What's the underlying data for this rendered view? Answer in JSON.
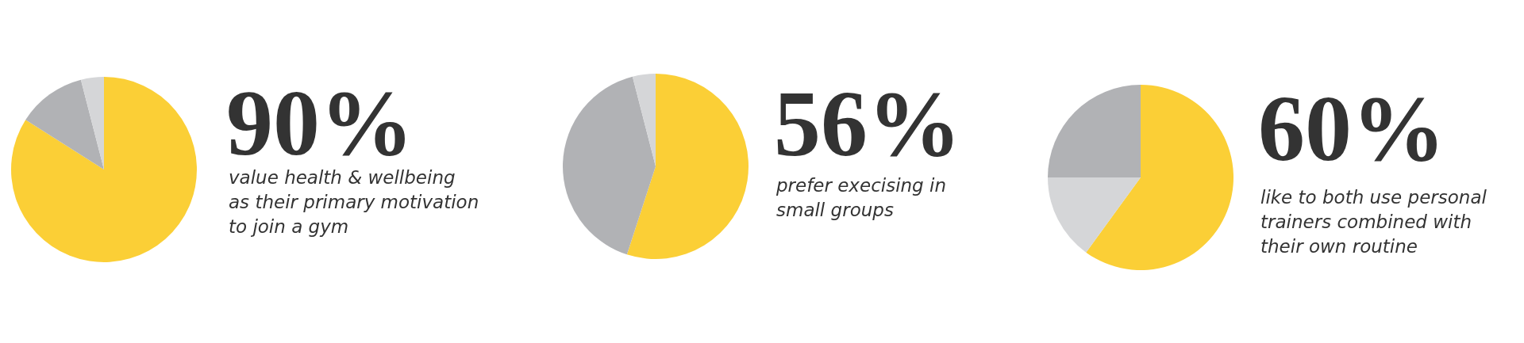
{
  "chart_data": [
    {
      "type": "pie",
      "title": "90%",
      "subtitle": "value health & wellbeing\nas their primary motivation\nto join a gym",
      "categories": [
        null,
        null,
        null
      ],
      "values": [
        84,
        12,
        4
      ],
      "colors": [
        "#fbcf36",
        "#b1b2b5",
        "#d5d6d8"
      ]
    },
    {
      "type": "pie",
      "title": "56%",
      "subtitle": "prefer execising in\nsmall groups",
      "categories": [
        null,
        null,
        null
      ],
      "values": [
        55,
        41,
        4
      ],
      "colors": [
        "#fbcf36",
        "#b1b2b5",
        "#d5d6d8"
      ]
    },
    {
      "type": "pie",
      "title": "60%",
      "subtitle": "like to both use personal\ntrainers combined with\ntheir own routine",
      "categories": [
        null,
        null,
        null
      ],
      "values": [
        60,
        15,
        25
      ],
      "colors": [
        "#fbcf36",
        "#d5d6d8",
        "#b1b2b5"
      ]
    }
  ]
}
